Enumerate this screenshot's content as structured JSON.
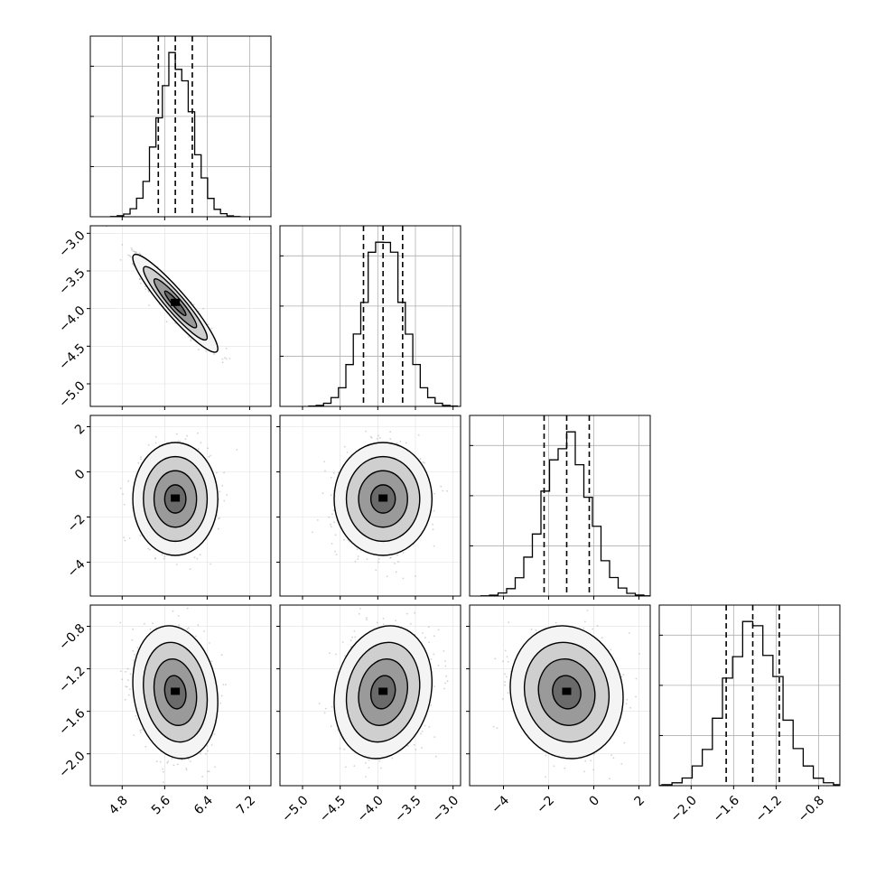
{
  "chart_data": {
    "type": "corner",
    "params": [
      {
        "range": [
          4.2,
          7.6
        ],
        "ticks": [
          4.8,
          5.6,
          6.4,
          7.2
        ],
        "tick_labels": [
          "4.8",
          "5.6",
          "6.4",
          "7.2"
        ],
        "mean": 5.8,
        "sigma": 0.32,
        "quantiles": [
          5.48,
          5.8,
          6.12
        ]
      },
      {
        "range": [
          -5.3,
          -2.9
        ],
        "ticks": [
          -5.0,
          -4.5,
          -4.0,
          -3.5,
          -3.0
        ],
        "tick_labels": [
          "−5.0",
          "−4.5",
          "−4.0",
          "−3.5",
          "−3.0"
        ],
        "mean": -3.93,
        "sigma": 0.26,
        "quantiles": [
          -4.19,
          -3.93,
          -3.67
        ]
      },
      {
        "range": [
          -5.5,
          2.5
        ],
        "ticks": [
          -4,
          -2,
          0,
          2
        ],
        "tick_labels": [
          "−4",
          "−2",
          "0",
          "2"
        ],
        "mean": -1.2,
        "sigma": 1.0,
        "quantiles": [
          -2.2,
          -1.2,
          -0.2
        ]
      },
      {
        "range": [
          -2.3,
          -0.6
        ],
        "ticks": [
          -2.0,
          -1.6,
          -1.2,
          -0.8
        ],
        "tick_labels": [
          "−2.0",
          "−1.6",
          "−1.2",
          "−0.8"
        ],
        "mean": -1.42,
        "sigma": 0.25,
        "quantiles": [
          -1.67,
          -1.42,
          -1.17
        ]
      }
    ],
    "correlations": [
      {
        "pair": [
          0,
          1
        ],
        "rho": -0.93
      },
      {
        "pair": [
          0,
          2
        ],
        "rho": 0.0
      },
      {
        "pair": [
          1,
          2
        ],
        "rho": 0.0
      },
      {
        "pair": [
          0,
          3
        ],
        "rho": -0.15
      },
      {
        "pair": [
          1,
          3
        ],
        "rho": 0.15
      },
      {
        "pair": [
          2,
          3
        ],
        "rho": -0.08
      }
    ],
    "grid": true,
    "histogram_bins": 20,
    "contour_levels": [
      0.5,
      1.0,
      1.5,
      2.0
    ],
    "colors": {
      "line": "#000000",
      "points": "#7f7f7f",
      "grid": "#b0b0b0",
      "fill_max": "#3a3a3a"
    }
  }
}
